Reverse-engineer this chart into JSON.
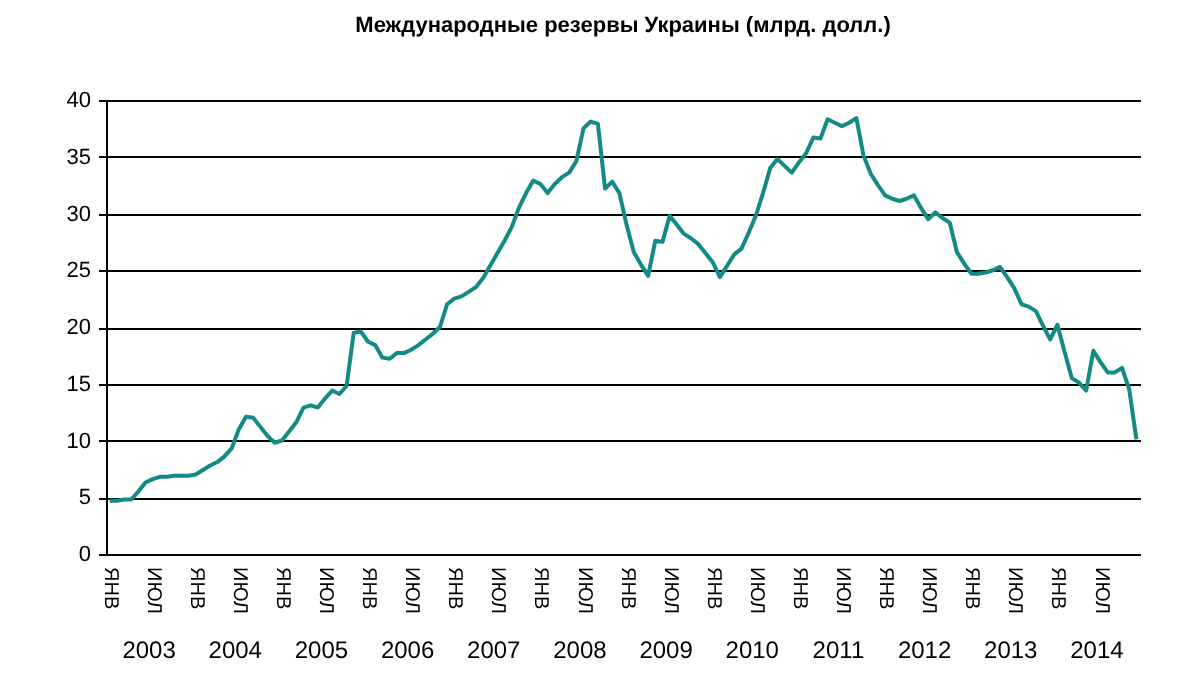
{
  "chart_data": {
    "type": "line",
    "title": "Международные резервы Украины (млрд. долл.)",
    "ylim": [
      0,
      40
    ],
    "yticks": [
      0,
      5,
      10,
      15,
      20,
      25,
      30,
      35,
      40
    ],
    "grid": "y",
    "categories": [
      "ЯНВ",
      null,
      null,
      null,
      null,
      null,
      "ИЮЛ",
      null,
      null,
      null,
      null,
      null,
      "ЯНВ",
      null,
      null,
      null,
      null,
      null,
      "ИЮЛ",
      null,
      null,
      null,
      null,
      null,
      "ЯНВ",
      null,
      null,
      null,
      null,
      null,
      "ИЮЛ",
      null,
      null,
      null,
      null,
      null,
      "ЯНВ",
      null,
      null,
      null,
      null,
      null,
      "ИЮЛ",
      null,
      null,
      null,
      null,
      null,
      "ЯНВ",
      null,
      null,
      null,
      null,
      null,
      "ИЮЛ",
      null,
      null,
      null,
      null,
      null,
      "ЯНВ",
      null,
      null,
      null,
      null,
      null,
      "ИЮЛ",
      null,
      null,
      null,
      null,
      null,
      "ЯНВ",
      null,
      null,
      null,
      null,
      null,
      "ИЮЛ",
      null,
      null,
      null,
      null,
      null,
      "ЯНВ",
      null,
      null,
      null,
      null,
      null,
      "ИЮЛ",
      null,
      null,
      null,
      null,
      null,
      "ЯНВ",
      null,
      null,
      null,
      null,
      null,
      "ИЮЛ",
      null,
      null,
      null,
      null,
      null,
      "ЯНВ",
      null,
      null,
      null,
      null,
      null,
      "ИЮЛ",
      null,
      null,
      null,
      null,
      null,
      "ЯНВ",
      null,
      null,
      null,
      null,
      null,
      "ИЮЛ",
      null,
      null,
      null,
      null,
      null,
      "ЯНВ",
      null,
      null,
      null,
      null,
      null,
      "ИЮЛ",
      null,
      null,
      null,
      null,
      null
    ],
    "annotations": [
      "2003",
      "2004",
      "2005",
      "2006",
      "2007",
      "2008",
      "2009",
      "2010",
      "2011",
      "2012",
      "2013",
      "2014"
    ],
    "series": [
      {
        "color": "#138a84",
        "values": [
          4.7,
          4.7,
          4.8,
          4.8,
          5.5,
          6.3,
          6.6,
          6.8,
          6.8,
          6.9,
          6.9,
          6.9,
          7.0,
          7.4,
          7.8,
          8.1,
          8.6,
          9.3,
          11.0,
          12.1,
          12.0,
          11.2,
          10.4,
          9.8,
          10.0,
          10.8,
          11.6,
          12.9,
          13.1,
          12.9,
          13.7,
          14.4,
          14.1,
          14.8,
          19.5,
          19.6,
          18.7,
          18.4,
          17.3,
          17.2,
          17.7,
          17.7,
          18.0,
          18.4,
          18.9,
          19.4,
          20.0,
          22.0,
          22.5,
          22.7,
          23.1,
          23.5,
          24.3,
          25.4,
          26.5,
          27.6,
          28.8,
          30.5,
          31.8,
          32.9,
          32.6,
          31.8,
          32.6,
          33.2,
          33.6,
          34.6,
          37.5,
          38.1,
          37.9,
          32.2,
          32.8,
          31.8,
          29.0,
          26.6,
          25.5,
          24.5,
          27.6,
          27.5,
          29.8,
          29.0,
          28.2,
          27.8,
          27.3,
          26.5,
          25.7,
          24.4,
          25.4,
          26.4,
          26.9,
          28.3,
          29.8,
          31.8,
          34.0,
          34.8,
          34.2,
          33.6,
          34.5,
          35.3,
          36.7,
          36.6,
          38.3,
          38.0,
          37.7,
          38.0,
          38.4,
          35.1,
          33.5,
          32.5,
          31.6,
          31.3,
          31.1,
          31.3,
          31.6,
          30.5,
          29.5,
          30.1,
          29.6,
          29.2,
          26.6,
          25.6,
          24.7,
          24.7,
          24.8,
          25.0,
          25.3,
          24.4,
          23.4,
          22.0,
          21.8,
          21.4,
          20.1,
          18.9,
          20.2,
          17.8,
          15.5,
          15.1,
          14.4,
          17.9,
          16.9,
          16.0,
          16.0,
          16.4,
          14.5,
          10.1
        ]
      }
    ]
  }
}
